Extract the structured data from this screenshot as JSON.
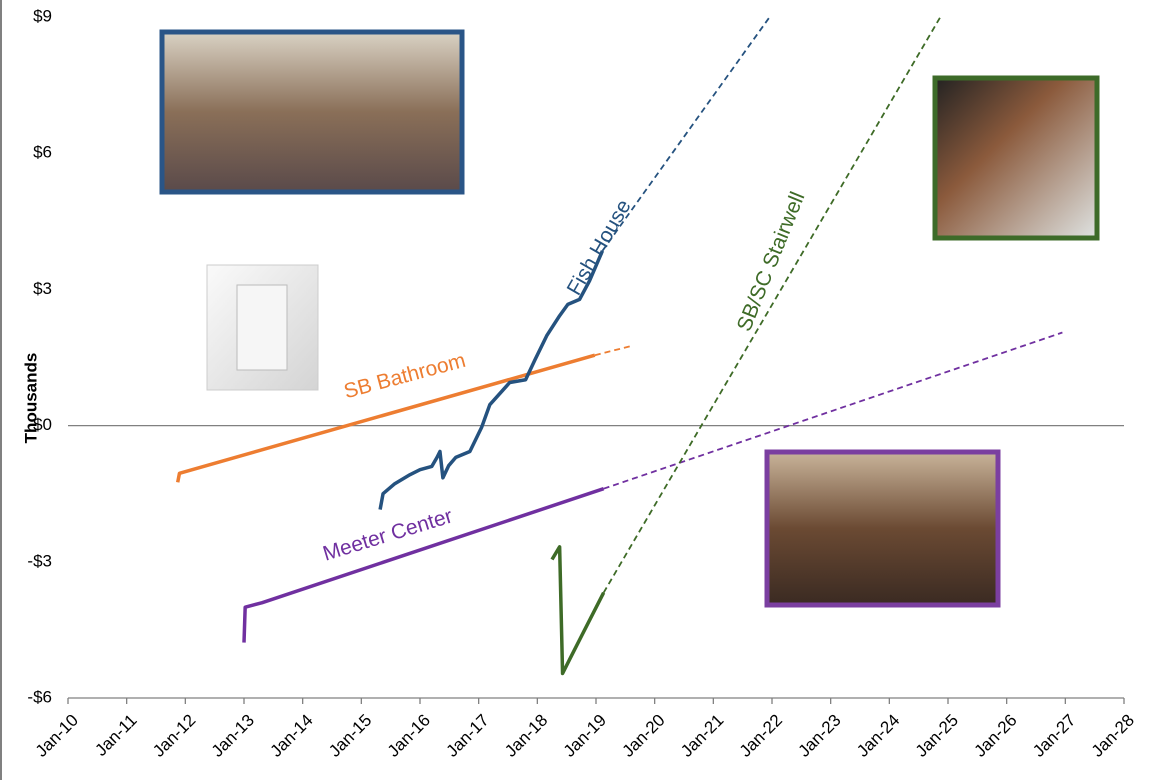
{
  "chart_data": {
    "type": "line",
    "y_axis_title": "Thousands",
    "xlim": [
      2010,
      2028
    ],
    "xticks": [
      {
        "value": 2010,
        "label": "Jan-10"
      },
      {
        "value": 2011,
        "label": "Jan-11"
      },
      {
        "value": 2012,
        "label": "Jan-12"
      },
      {
        "value": 2013,
        "label": "Jan-13"
      },
      {
        "value": 2014,
        "label": "Jan-14"
      },
      {
        "value": 2015,
        "label": "Jan-15"
      },
      {
        "value": 2016,
        "label": "Jan-16"
      },
      {
        "value": 2017,
        "label": "Jan-17"
      },
      {
        "value": 2018,
        "label": "Jan-18"
      },
      {
        "value": 2019,
        "label": "Jan-19"
      },
      {
        "value": 2020,
        "label": "Jan-20"
      },
      {
        "value": 2021,
        "label": "Jan-21"
      },
      {
        "value": 2022,
        "label": "Jan-22"
      },
      {
        "value": 2023,
        "label": "Jan-23"
      },
      {
        "value": 2024,
        "label": "Jan-24"
      },
      {
        "value": 2025,
        "label": "Jan-25"
      },
      {
        "value": 2026,
        "label": "Jan-26"
      },
      {
        "value": 2027,
        "label": "Jan-27"
      },
      {
        "value": 2028,
        "label": "Jan-28"
      }
    ],
    "ylim": [
      -6,
      9
    ],
    "yticks": [
      {
        "value": 9,
        "label": "$9"
      },
      {
        "value": 6,
        "label": "$6"
      },
      {
        "value": 3,
        "label": "$3"
      },
      {
        "value": 0,
        "label": "$0"
      },
      {
        "value": -3,
        "label": "-$3"
      },
      {
        "value": -6,
        "label": "-$6"
      }
    ],
    "series": [
      {
        "name": "SB Bathroom",
        "color": "#ed7d31",
        "x": [
          2011.87,
          2011.9,
          2018.98
        ],
        "values": [
          -1.25,
          -1.05,
          1.55
        ],
        "projection": {
          "x": [
            2018.98,
            2019.62
          ],
          "values": [
            1.55,
            1.76
          ]
        }
      },
      {
        "name": "Fish House",
        "color": "#25527f",
        "x": [
          2015.32,
          2015.37,
          2015.57,
          2015.83,
          2016.0,
          2016.2,
          2016.29,
          2016.34,
          2016.39,
          2016.49,
          2016.61,
          2016.85,
          2017.05,
          2017.19,
          2017.53,
          2017.8,
          2017.96,
          2018.16,
          2018.38,
          2018.52,
          2018.72,
          2018.89,
          2019.11
        ],
        "values": [
          -1.85,
          -1.5,
          -1.28,
          -1.08,
          -0.97,
          -0.9,
          -0.7,
          -0.57,
          -1.15,
          -0.88,
          -0.7,
          -0.57,
          -0.04,
          0.46,
          0.95,
          1.01,
          1.45,
          1.98,
          2.42,
          2.67,
          2.78,
          3.19,
          3.85
        ],
        "projection": {
          "x": [
            2019.11,
            2021.96
          ],
          "values": [
            3.85,
            9.0
          ]
        }
      },
      {
        "name": "Meeter Center",
        "color": "#7030a0",
        "x": [
          2013.0,
          2013.02,
          2013.31,
          2019.13
        ],
        "values": [
          -4.78,
          -4.0,
          -3.9,
          -1.39
        ],
        "projection": {
          "x": [
            2019.13,
            2026.95
          ],
          "values": [
            -1.39,
            2.05
          ]
        }
      },
      {
        "name": "SB/SC Stairwell",
        "color": "#3e6b27",
        "x": [
          2018.25,
          2018.38,
          2018.43,
          2018.55,
          2018.81,
          2019.13
        ],
        "values": [
          -2.95,
          -2.67,
          -5.46,
          -5.15,
          -4.49,
          -3.68
        ],
        "projection": {
          "x": [
            2019.13,
            2024.87
          ],
          "values": [
            -3.68,
            9.0
          ]
        }
      }
    ]
  }
}
